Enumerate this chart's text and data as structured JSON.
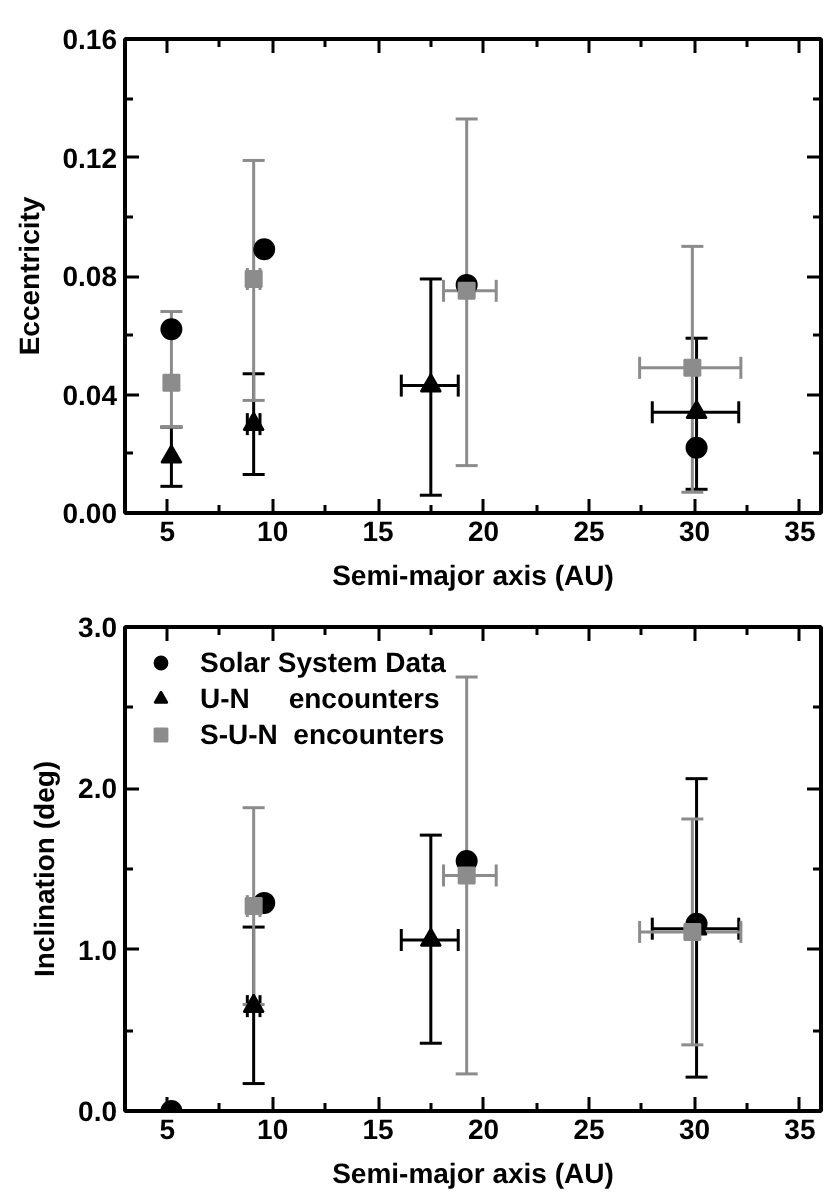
{
  "chart_data": [
    {
      "type": "scatter",
      "xlabel": "Semi-major axis (AU)",
      "ylabel": "Eccentricity",
      "xlim": [
        3,
        36
      ],
      "xticks": [
        5,
        10,
        15,
        20,
        25,
        30,
        35
      ],
      "ylim": [
        0,
        0.16
      ],
      "yticks": [
        {
          "value": 0,
          "label": "0.00"
        },
        0.04,
        0.08,
        0.12,
        0.16
      ],
      "grid": false,
      "series": [
        {
          "color": "#000000",
          "marker": "circle",
          "x": [
            5.2,
            9.6,
            19.2,
            30.1
          ],
          "values": [
            0.062,
            0.089,
            0.077,
            0.022
          ]
        },
        {
          "color": "#000000",
          "marker": "triangle",
          "x": [
            5.2,
            9.1,
            17.5,
            30.1
          ],
          "values": [
            0.019,
            0.03,
            0.043,
            0.034
          ],
          "errors": [
            [
              0.009,
              0.029
            ],
            [
              0.013,
              0.047
            ],
            [
              0.006,
              0.079
            ],
            [
              0.008,
              0.059
            ]
          ],
          "xerrors": [
            null,
            [
              8.8,
              9.4
            ],
            [
              16.1,
              18.8
            ],
            [
              28.0,
              32.1
            ]
          ]
        },
        {
          "color": "#8c8c8c",
          "marker": "square",
          "x": [
            5.2,
            9.1,
            19.2,
            29.9
          ],
          "values": [
            0.044,
            0.079,
            0.075,
            0.049
          ],
          "errors": [
            [
              0.029,
              0.068
            ],
            [
              0.038,
              0.119
            ],
            [
              0.016,
              0.133
            ],
            [
              0.007,
              0.09
            ]
          ],
          "xerrors": [
            null,
            [
              8.8,
              9.4
            ],
            [
              18.1,
              20.6
            ],
            [
              27.4,
              32.2
            ]
          ]
        }
      ]
    },
    {
      "type": "scatter",
      "xlabel": "Semi-major axis (AU)",
      "ylabel": "Inclination (deg)",
      "xlim": [
        3,
        36
      ],
      "xticks": [
        5,
        10,
        15,
        20,
        25,
        30,
        35
      ],
      "ylim": [
        0,
        3
      ],
      "yticks": [
        {
          "value": 0,
          "label": "0.0"
        },
        {
          "value": 1,
          "label": "1.0"
        },
        {
          "value": 2,
          "label": "2.0"
        },
        {
          "value": 3,
          "label": "3.0"
        }
      ],
      "grid": false,
      "legend": "top left",
      "series": [
        {
          "name": "Solar System Data",
          "color": "#000000",
          "marker": "circle",
          "x": [
            5.2,
            9.6,
            19.2,
            30.1
          ],
          "values": [
            0.0,
            1.29,
            1.55,
            1.16
          ]
        },
        {
          "name": "U-N     encounters",
          "color": "#000000",
          "marker": "triangle",
          "x": [
            9.1,
            17.5,
            30.1
          ],
          "values": [
            0.65,
            1.06,
            1.13
          ],
          "errors": [
            [
              0.17,
              1.14
            ],
            [
              0.42,
              1.71
            ],
            [
              0.21,
              2.06
            ]
          ],
          "xerrors": [
            [
              8.8,
              9.4
            ],
            [
              16.1,
              18.8
            ],
            [
              28.0,
              32.1
            ]
          ]
        },
        {
          "name": "S-U-N  encounters",
          "color": "#8c8c8c",
          "marker": "square",
          "x": [
            9.1,
            19.2,
            29.9
          ],
          "values": [
            1.27,
            1.46,
            1.11
          ],
          "errors": [
            [
              0.66,
              1.88
            ],
            [
              0.23,
              2.69
            ],
            [
              0.41,
              1.81
            ]
          ],
          "xerrors": [
            [
              8.8,
              9.4
            ],
            [
              18.1,
              20.6
            ],
            [
              27.4,
              32.2
            ]
          ]
        }
      ]
    }
  ]
}
